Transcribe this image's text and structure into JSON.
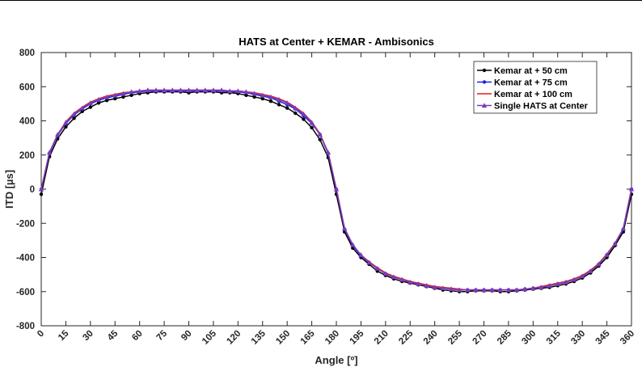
{
  "chart_data": {
    "type": "line",
    "title": "HATS at Center + KEMAR - Ambisonics",
    "xlabel": "Angle [º]",
    "ylabel": "ITD [µs]",
    "xlim": [
      0,
      360
    ],
    "ylim": [
      -800,
      800
    ],
    "xticks": [
      0,
      15,
      30,
      45,
      60,
      75,
      90,
      105,
      120,
      135,
      150,
      165,
      180,
      195,
      210,
      225,
      240,
      255,
      270,
      285,
      300,
      315,
      330,
      345,
      360
    ],
    "yticks": [
      -800,
      -600,
      -400,
      -200,
      0,
      200,
      400,
      600,
      800
    ],
    "grid": false,
    "legend_position": "top-right",
    "x": [
      0,
      5,
      10,
      15,
      20,
      25,
      30,
      35,
      40,
      45,
      50,
      55,
      60,
      65,
      70,
      75,
      80,
      85,
      90,
      95,
      100,
      105,
      110,
      115,
      120,
      125,
      130,
      135,
      140,
      145,
      150,
      155,
      160,
      165,
      170,
      175,
      180,
      185,
      190,
      195,
      200,
      205,
      210,
      215,
      220,
      225,
      230,
      235,
      240,
      245,
      250,
      255,
      260,
      265,
      270,
      275,
      280,
      285,
      290,
      295,
      300,
      305,
      310,
      315,
      320,
      325,
      330,
      335,
      340,
      345,
      350,
      355,
      360
    ],
    "series": [
      {
        "name": "Kemar at + 50 cm",
        "color": "#000000",
        "marker": "circle",
        "values": [
          -30,
          190,
          295,
          365,
          415,
          455,
          480,
          505,
          520,
          530,
          540,
          550,
          560,
          565,
          570,
          570,
          570,
          570,
          565,
          570,
          570,
          570,
          565,
          565,
          560,
          550,
          540,
          530,
          515,
          495,
          475,
          445,
          410,
          360,
          290,
          185,
          -30,
          -250,
          -345,
          -400,
          -440,
          -480,
          -505,
          -525,
          -540,
          -550,
          -560,
          -570,
          -580,
          -590,
          -595,
          -600,
          -600,
          -595,
          -595,
          -595,
          -600,
          -600,
          -595,
          -590,
          -585,
          -580,
          -575,
          -565,
          -555,
          -540,
          -520,
          -490,
          -450,
          -400,
          -330,
          -250,
          -30
        ]
      },
      {
        "name": "Kemar at + 75 cm",
        "color": "#1f1fe6",
        "marker": "circle",
        "values": [
          0,
          210,
          315,
          385,
          435,
          470,
          500,
          520,
          535,
          545,
          555,
          565,
          570,
          575,
          575,
          575,
          575,
          575,
          575,
          575,
          575,
          575,
          575,
          570,
          570,
          565,
          555,
          545,
          535,
          515,
          495,
          470,
          430,
          385,
          320,
          210,
          0,
          -235,
          -330,
          -390,
          -430,
          -465,
          -495,
          -515,
          -530,
          -545,
          -555,
          -565,
          -575,
          -580,
          -585,
          -590,
          -590,
          -590,
          -590,
          -590,
          -590,
          -590,
          -590,
          -585,
          -580,
          -575,
          -565,
          -555,
          -545,
          -530,
          -510,
          -480,
          -440,
          -385,
          -320,
          -235,
          0
        ]
      },
      {
        "name": "Kemar at + 100 cm",
        "color": "#e01f1f",
        "marker": "none",
        "values": [
          0,
          215,
          320,
          395,
          445,
          480,
          510,
          530,
          545,
          555,
          565,
          570,
          575,
          580,
          580,
          580,
          580,
          580,
          580,
          580,
          580,
          580,
          580,
          575,
          575,
          570,
          565,
          555,
          545,
          530,
          510,
          480,
          445,
          395,
          325,
          215,
          0,
          -230,
          -325,
          -385,
          -425,
          -460,
          -490,
          -510,
          -525,
          -540,
          -550,
          -560,
          -570,
          -575,
          -580,
          -585,
          -590,
          -590,
          -590,
          -590,
          -590,
          -590,
          -590,
          -585,
          -580,
          -570,
          -560,
          -550,
          -540,
          -525,
          -505,
          -475,
          -435,
          -380,
          -315,
          -230,
          0
        ]
      },
      {
        "name": "Single HATS at Center",
        "color": "#7a3db8",
        "marker": "triangle",
        "values": [
          0,
          215,
          320,
          390,
          440,
          475,
          505,
          525,
          540,
          550,
          560,
          570,
          575,
          580,
          580,
          580,
          580,
          580,
          580,
          580,
          580,
          580,
          580,
          575,
          575,
          570,
          560,
          550,
          540,
          525,
          505,
          475,
          440,
          390,
          320,
          215,
          0,
          -230,
          -325,
          -385,
          -430,
          -465,
          -495,
          -515,
          -530,
          -545,
          -555,
          -565,
          -575,
          -580,
          -585,
          -590,
          -590,
          -590,
          -590,
          -590,
          -590,
          -590,
          -590,
          -585,
          -580,
          -575,
          -565,
          -555,
          -545,
          -530,
          -510,
          -480,
          -440,
          -385,
          -320,
          -230,
          0
        ]
      }
    ]
  }
}
